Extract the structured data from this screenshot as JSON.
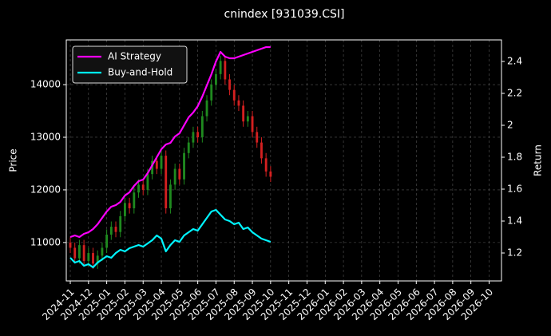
{
  "chart_data": {
    "type": "candlestick",
    "title": "cnindex [931039.CSI]",
    "ylabel": "Price",
    "y2label": "Return",
    "x": [
      0,
      0.25,
      0.5,
      0.75,
      1,
      1.25,
      1.5,
      1.75,
      2,
      2.25,
      2.5,
      2.75,
      3,
      3.25,
      3.5,
      3.75,
      4,
      4.25,
      4.5,
      4.75,
      5,
      5.25,
      5.5,
      5.75,
      6,
      6.25,
      6.5,
      6.75,
      7,
      7.25,
      7.5,
      7.75,
      8,
      8.25,
      8.5,
      8.75,
      9,
      9.25,
      9.5,
      9.75,
      10,
      10.25,
      10.5,
      10.75,
      11
    ],
    "open": [
      11000,
      10900,
      10700,
      10950,
      10650,
      10800,
      10600,
      10750,
      10900,
      11150,
      11300,
      11200,
      11500,
      11750,
      11650,
      11950,
      12100,
      12000,
      12300,
      12550,
      12400,
      12650,
      11650,
      12100,
      12400,
      12200,
      12700,
      12900,
      13100,
      13000,
      13400,
      13700,
      14000,
      14200,
      14450,
      14100,
      13900,
      13700,
      13600,
      13300,
      13400,
      13100,
      12900,
      12600,
      12350
    ],
    "high": [
      11100,
      11000,
      11050,
      11050,
      10900,
      10900,
      10850,
      11000,
      11250,
      11400,
      11400,
      11600,
      11850,
      11850,
      12050,
      12200,
      12200,
      12400,
      12650,
      12650,
      12750,
      12750,
      12200,
      12500,
      12500,
      12800,
      13000,
      13200,
      13200,
      13500,
      13800,
      14100,
      14300,
      14550,
      14550,
      14200,
      14000,
      13800,
      13700,
      13500,
      13500,
      13200,
      13000,
      12700,
      12450
    ],
    "low": [
      10800,
      10600,
      10600,
      10550,
      10550,
      10500,
      10500,
      10650,
      10800,
      11050,
      11100,
      11100,
      11400,
      11550,
      11550,
      11850,
      11900,
      11900,
      12200,
      12300,
      12300,
      11550,
      11550,
      12000,
      12100,
      12100,
      12600,
      12800,
      12900,
      12900,
      13300,
      13600,
      13900,
      14100,
      14000,
      13800,
      13600,
      13500,
      13200,
      13200,
      13000,
      12800,
      12500,
      12250,
      12150
    ],
    "close": [
      10900,
      10700,
      10950,
      10650,
      10800,
      10600,
      10750,
      10900,
      11150,
      11300,
      11200,
      11500,
      11750,
      11650,
      11950,
      12100,
      12000,
      12300,
      12550,
      12400,
      12650,
      11650,
      12100,
      12400,
      12200,
      12700,
      12900,
      13100,
      13000,
      13400,
      13700,
      14000,
      14200,
      14450,
      14100,
      13900,
      13700,
      13600,
      13300,
      13400,
      13100,
      12900,
      12600,
      12350,
      12250
    ],
    "up_color": "#1f8a1f",
    "down_color": "#d42020",
    "series": [
      {
        "name": "AI Strategy",
        "color": "#ff00ff",
        "axis": "y2",
        "values": [
          1.3,
          1.31,
          1.3,
          1.32,
          1.33,
          1.35,
          1.38,
          1.42,
          1.46,
          1.49,
          1.5,
          1.52,
          1.56,
          1.58,
          1.62,
          1.65,
          1.66,
          1.7,
          1.75,
          1.8,
          1.85,
          1.88,
          1.89,
          1.93,
          1.95,
          2.0,
          2.05,
          2.08,
          2.12,
          2.18,
          2.25,
          2.32,
          2.4,
          2.46,
          2.43,
          2.42,
          2.42,
          2.43,
          2.44,
          2.45,
          2.46,
          2.47,
          2.48,
          2.49,
          2.49
        ]
      },
      {
        "name": "Buy-and-Hold",
        "color": "#00f5ff",
        "axis": "y2",
        "values": [
          1.17,
          1.14,
          1.15,
          1.12,
          1.13,
          1.11,
          1.14,
          1.16,
          1.18,
          1.17,
          1.2,
          1.22,
          1.21,
          1.23,
          1.24,
          1.25,
          1.24,
          1.26,
          1.28,
          1.31,
          1.29,
          1.21,
          1.25,
          1.28,
          1.27,
          1.31,
          1.33,
          1.35,
          1.34,
          1.38,
          1.42,
          1.46,
          1.47,
          1.44,
          1.41,
          1.4,
          1.38,
          1.39,
          1.35,
          1.36,
          1.33,
          1.31,
          1.29,
          1.28,
          1.27
        ]
      }
    ],
    "xlim": [
      -0.22,
      23.68
    ],
    "xticks": [
      {
        "value": 0,
        "label": "2024-11"
      },
      {
        "value": 1,
        "label": "2024-12"
      },
      {
        "value": 2,
        "label": "2025-01"
      },
      {
        "value": 3,
        "label": "2025-02"
      },
      {
        "value": 4,
        "label": "2025-03"
      },
      {
        "value": 5,
        "label": "2025-04"
      },
      {
        "value": 6,
        "label": "2025-05"
      },
      {
        "value": 7,
        "label": "2025-06"
      },
      {
        "value": 8,
        "label": "2025-07"
      },
      {
        "value": 9,
        "label": "2025-08"
      },
      {
        "value": 10,
        "label": "2025-09"
      },
      {
        "value": 11,
        "label": "2025-10"
      },
      {
        "value": 12,
        "label": "2025-11"
      },
      {
        "value": 13,
        "label": "2025-12"
      },
      {
        "value": 14,
        "label": "2026-01"
      },
      {
        "value": 15,
        "label": "2026-02"
      },
      {
        "value": 16,
        "label": "2026-03"
      },
      {
        "value": 17,
        "label": "2026-04"
      },
      {
        "value": 18,
        "label": "2026-05"
      },
      {
        "value": 19,
        "label": "2026-06"
      },
      {
        "value": 20,
        "label": "2026-07"
      },
      {
        "value": 21,
        "label": "2026-08"
      },
      {
        "value": 22,
        "label": "2026-09"
      },
      {
        "value": 23,
        "label": "2026-10"
      }
    ],
    "ylim": [
      10270,
      14850
    ],
    "yticks": [
      11000,
      12000,
      13000,
      14000
    ],
    "y2lim": [
      1.025,
      2.535
    ],
    "y2ticks": [
      1.2,
      1.4,
      1.6,
      1.8,
      2.0,
      2.2,
      2.4
    ],
    "grid": true,
    "legend": "upper left"
  }
}
